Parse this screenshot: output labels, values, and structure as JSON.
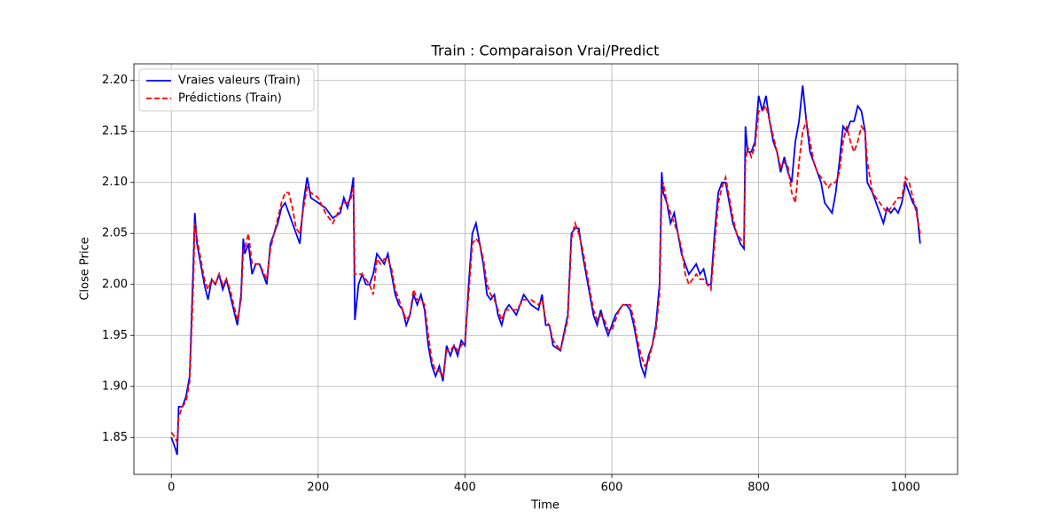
{
  "chart_data": {
    "type": "line",
    "title": "Train : Comparaison Vrai/Predict",
    "x_label": "Time",
    "y_label": "Close Price",
    "x": [
      0,
      5,
      8,
      10,
      15,
      20,
      25,
      30,
      32,
      35,
      40,
      45,
      50,
      55,
      60,
      65,
      70,
      75,
      80,
      85,
      90,
      95,
      98,
      100,
      105,
      110,
      115,
      120,
      130,
      135,
      140,
      145,
      150,
      155,
      160,
      165,
      170,
      175,
      180,
      185,
      190,
      200,
      210,
      220,
      230,
      235,
      240,
      245,
      248,
      250,
      255,
      260,
      265,
      270,
      275,
      280,
      285,
      290,
      295,
      300,
      305,
      310,
      315,
      320,
      325,
      330,
      335,
      340,
      345,
      350,
      355,
      360,
      365,
      370,
      375,
      380,
      385,
      390,
      395,
      400,
      405,
      410,
      415,
      420,
      425,
      430,
      435,
      440,
      445,
      450,
      455,
      460,
      470,
      480,
      490,
      500,
      505,
      510,
      515,
      520,
      530,
      540,
      545,
      550,
      555,
      560,
      565,
      570,
      575,
      580,
      585,
      590,
      595,
      600,
      605,
      610,
      615,
      620,
      625,
      630,
      635,
      640,
      645,
      650,
      655,
      660,
      665,
      668,
      670,
      675,
      680,
      685,
      690,
      695,
      700,
      705,
      710,
      715,
      720,
      725,
      730,
      735,
      740,
      745,
      750,
      755,
      760,
      765,
      770,
      775,
      780,
      782,
      785,
      790,
      795,
      800,
      805,
      810,
      815,
      820,
      825,
      830,
      835,
      840,
      845,
      850,
      855,
      860,
      865,
      870,
      875,
      880,
      885,
      890,
      895,
      900,
      905,
      910,
      915,
      920,
      925,
      930,
      935,
      940,
      945,
      948,
      955,
      960,
      965,
      970,
      975,
      980,
      985,
      990,
      995,
      1000,
      1005,
      1010,
      1015,
      1020
    ],
    "series": [
      {
        "name": "Vraies valeurs (Train)",
        "color": "#0000ff",
        "dash": "solid",
        "values": [
          1.85,
          1.84,
          1.833,
          1.88,
          1.88,
          1.89,
          1.91,
          2.02,
          2.07,
          2.04,
          2.02,
          2.0,
          1.985,
          2.005,
          2.0,
          2.01,
          1.995,
          2.005,
          1.99,
          1.975,
          1.96,
          1.99,
          2.045,
          2.03,
          2.04,
          2.01,
          2.02,
          2.02,
          2.0,
          2.04,
          2.05,
          2.06,
          2.075,
          2.08,
          2.07,
          2.06,
          2.05,
          2.04,
          2.08,
          2.105,
          2.085,
          2.08,
          2.075,
          2.065,
          2.07,
          2.085,
          2.075,
          2.09,
          2.105,
          1.965,
          2.0,
          2.01,
          2.0,
          2.0,
          2.01,
          2.03,
          2.025,
          2.02,
          2.03,
          2.01,
          1.99,
          1.98,
          1.975,
          1.96,
          1.97,
          1.99,
          1.98,
          1.99,
          1.975,
          1.94,
          1.92,
          1.91,
          1.92,
          1.905,
          1.94,
          1.93,
          1.94,
          1.93,
          1.945,
          1.94,
          2.0,
          2.05,
          2.06,
          2.04,
          2.02,
          1.99,
          1.985,
          1.99,
          1.97,
          1.96,
          1.975,
          1.98,
          1.97,
          1.99,
          1.98,
          1.975,
          1.99,
          1.96,
          1.96,
          1.94,
          1.935,
          1.97,
          2.05,
          2.055,
          2.055,
          2.03,
          2.01,
          1.99,
          1.97,
          1.96,
          1.975,
          1.96,
          1.95,
          1.96,
          1.97,
          1.975,
          1.98,
          1.98,
          1.975,
          1.96,
          1.94,
          1.92,
          1.91,
          1.93,
          1.94,
          1.96,
          2.0,
          2.11,
          2.09,
          2.08,
          2.06,
          2.07,
          2.05,
          2.03,
          2.02,
          2.01,
          2.015,
          2.02,
          2.01,
          2.015,
          2.0,
          2.0,
          2.05,
          2.09,
          2.1,
          2.1,
          2.08,
          2.06,
          2.05,
          2.04,
          2.035,
          2.155,
          2.13,
          2.13,
          2.14,
          2.185,
          2.17,
          2.185,
          2.16,
          2.14,
          2.13,
          2.11,
          2.125,
          2.11,
          2.1,
          2.14,
          2.16,
          2.195,
          2.16,
          2.13,
          2.12,
          2.11,
          2.1,
          2.08,
          2.075,
          2.07,
          2.09,
          2.12,
          2.155,
          2.15,
          2.16,
          2.16,
          2.175,
          2.17,
          2.15,
          2.1,
          2.09,
          2.08,
          2.07,
          2.06,
          2.075,
          2.07,
          2.075,
          2.07,
          2.08,
          2.1,
          2.09,
          2.08,
          2.075,
          2.04
        ]
      },
      {
        "name": "Prédictions (Train)",
        "color": "#ff0000",
        "dash": "dashed",
        "values": [
          1.855,
          1.85,
          1.845,
          1.87,
          1.88,
          1.885,
          1.905,
          2.0,
          2.06,
          2.045,
          2.025,
          2.005,
          1.995,
          2.005,
          2.0,
          2.01,
          2.0,
          2.005,
          1.995,
          1.98,
          1.965,
          1.985,
          2.035,
          2.035,
          2.05,
          2.02,
          2.02,
          2.02,
          2.005,
          2.035,
          2.05,
          2.065,
          2.08,
          2.09,
          2.09,
          2.075,
          2.055,
          2.05,
          2.075,
          2.095,
          2.09,
          2.085,
          2.07,
          2.06,
          2.075,
          2.08,
          2.08,
          2.085,
          2.095,
          2.01,
          2.01,
          2.01,
          2.005,
          2.0,
          1.99,
          2.025,
          2.02,
          2.025,
          2.025,
          2.015,
          1.995,
          1.985,
          1.975,
          1.965,
          1.97,
          1.995,
          1.985,
          1.985,
          1.98,
          1.95,
          1.925,
          1.915,
          1.915,
          1.91,
          1.935,
          1.935,
          1.94,
          1.935,
          1.94,
          1.945,
          1.99,
          2.04,
          2.045,
          2.04,
          2.025,
          2.0,
          1.99,
          1.985,
          1.975,
          1.965,
          1.975,
          1.975,
          1.975,
          1.985,
          1.985,
          1.98,
          1.985,
          1.965,
          1.96,
          1.945,
          1.935,
          1.965,
          2.045,
          2.06,
          2.05,
          2.035,
          2.015,
          1.995,
          1.975,
          1.965,
          1.97,
          1.965,
          1.955,
          1.955,
          1.965,
          1.975,
          1.98,
          1.98,
          1.98,
          1.965,
          1.945,
          1.93,
          1.92,
          1.925,
          1.94,
          1.955,
          1.99,
          2.09,
          2.1,
          2.08,
          2.07,
          2.06,
          2.05,
          2.035,
          2.01,
          2.0,
          2.005,
          2.01,
          2.005,
          2.005,
          2.0,
          1.995,
          2.04,
          2.08,
          2.095,
          2.105,
          2.085,
          2.065,
          2.05,
          2.045,
          2.04,
          2.12,
          2.135,
          2.125,
          2.135,
          2.17,
          2.17,
          2.175,
          2.16,
          2.145,
          2.13,
          2.115,
          2.12,
          2.115,
          2.09,
          2.08,
          2.12,
          2.15,
          2.16,
          2.14,
          2.12,
          2.11,
          2.105,
          2.1,
          2.095,
          2.1,
          2.1,
          2.11,
          2.14,
          2.155,
          2.14,
          2.13,
          2.14,
          2.155,
          2.15,
          2.12,
          2.09,
          2.085,
          2.08,
          2.075,
          2.07,
          2.075,
          2.08,
          2.085,
          2.085,
          2.105,
          2.1,
          2.085,
          2.07,
          2.05
        ]
      }
    ],
    "xlim": [
      -51,
      1071
    ],
    "ylim": [
      1.8137,
      2.2163
    ],
    "xticks": [
      0,
      200,
      400,
      600,
      800,
      1000
    ],
    "yticks": [
      1.85,
      {
        "value": 1.9,
        "label": "1.90"
      },
      1.95,
      {
        "value": 2.0,
        "label": "2.00"
      },
      2.05,
      {
        "value": 2.1,
        "label": "2.10"
      },
      2.15,
      {
        "value": 2.2,
        "label": "2.20"
      }
    ],
    "grid": true,
    "legend": "upper left"
  }
}
